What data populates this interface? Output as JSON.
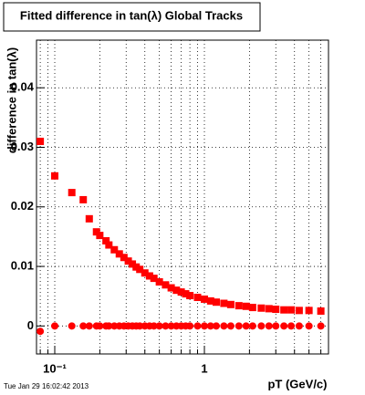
{
  "chart_data": {
    "type": "scatter",
    "title": "Fitted difference in tan(λ) Global Tracks",
    "x_label": "pT (GeV/c)",
    "y_label": "difference in tan(λ)",
    "timestamp": "Tue Jan 29 16:02:42 2013",
    "xscale": "log",
    "grid": true,
    "xlim": [
      0.0755,
      6.75
    ],
    "ylim": [
      -0.0047,
      0.048
    ],
    "xticks": [
      {
        "value": 0.1,
        "label": "10⁻¹"
      },
      1
    ],
    "xminorticks": [
      0.08,
      0.09,
      0.2,
      0.3,
      0.4,
      0.5,
      0.6,
      0.7,
      0.8,
      0.9,
      2,
      3,
      4,
      5,
      6
    ],
    "yticks": [
      0,
      0.01,
      0.02,
      0.03,
      0.04
    ],
    "series": [
      {
        "marker": "square",
        "color": "#ff0000",
        "x": [
          0.08,
          0.1,
          0.13,
          0.155,
          0.17,
          0.19,
          0.2,
          0.22,
          0.23,
          0.25,
          0.27,
          0.29,
          0.31,
          0.33,
          0.35,
          0.37,
          0.4,
          0.43,
          0.46,
          0.5,
          0.55,
          0.6,
          0.65,
          0.7,
          0.75,
          0.8,
          0.9,
          1.0,
          1.1,
          1.2,
          1.35,
          1.5,
          1.7,
          1.9,
          2.1,
          2.4,
          2.7,
          3.0,
          3.4,
          3.8,
          4.3,
          5.0,
          6.0
        ],
        "values": [
          0.031,
          0.0252,
          0.0224,
          0.0212,
          0.018,
          0.0158,
          0.0152,
          0.0143,
          0.0136,
          0.0128,
          0.0121,
          0.0115,
          0.0109,
          0.0104,
          0.0099,
          0.0095,
          0.0089,
          0.0084,
          0.008,
          0.0074,
          0.0069,
          0.0064,
          0.006,
          0.0057,
          0.0054,
          0.0051,
          0.0048,
          0.0045,
          0.0042,
          0.004,
          0.0038,
          0.0036,
          0.0034,
          0.0033,
          0.0031,
          0.003,
          0.0029,
          0.0028,
          0.0027,
          0.0027,
          0.0026,
          0.0026,
          0.0025
        ]
      },
      {
        "marker": "circle",
        "color": "#ff0000",
        "x": [
          0.08,
          0.1,
          0.13,
          0.155,
          0.17,
          0.19,
          0.2,
          0.22,
          0.23,
          0.25,
          0.27,
          0.29,
          0.31,
          0.33,
          0.35,
          0.37,
          0.4,
          0.43,
          0.46,
          0.5,
          0.55,
          0.6,
          0.65,
          0.7,
          0.75,
          0.8,
          0.9,
          1.0,
          1.1,
          1.2,
          1.35,
          1.5,
          1.7,
          1.9,
          2.1,
          2.4,
          2.7,
          3.0,
          3.4,
          3.8,
          4.3,
          5.0,
          6.0
        ],
        "values": [
          -0.0009,
          0,
          0,
          0,
          0,
          0,
          0,
          0,
          0,
          0,
          0,
          0,
          0,
          0,
          0,
          0,
          0,
          0,
          0,
          0,
          0,
          0,
          0,
          0,
          0,
          0,
          0,
          0,
          0,
          0,
          0,
          0,
          0,
          0,
          0,
          0,
          0,
          0,
          0,
          0,
          0,
          0,
          0
        ]
      }
    ]
  }
}
